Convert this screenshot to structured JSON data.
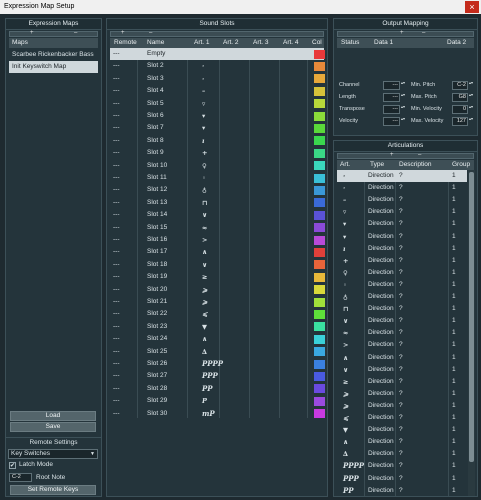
{
  "window": {
    "title": "Expression Map Setup",
    "close_glyph": "×"
  },
  "expression_maps": {
    "header": "Expression Maps",
    "add_glyph": "+",
    "remove_glyph": "–",
    "col_header": "Maps",
    "maps": [
      {
        "name": "Scarbee Rickenbacker Bass",
        "selected": false
      },
      {
        "name": "Init Keyswitch Map",
        "selected": true
      }
    ],
    "load_label": "Load",
    "save_label": "Save"
  },
  "remote_settings": {
    "header": "Remote Settings",
    "mode_value": "Key Switches",
    "latch_label": "Latch Mode",
    "latch_checked": true,
    "root_note_value": "C-2",
    "root_note_label": "Root Note",
    "set_keys_label": "Set Remote Keys"
  },
  "sound_slots": {
    "header": "Sound Slots",
    "add_glyph": "+",
    "remove_glyph": "–",
    "columns": [
      "Remote",
      "Name",
      "Art. 1",
      "Art. 2",
      "Art. 3",
      "Art. 4",
      "Col"
    ],
    "rows": [
      {
        "remote": "---",
        "name": "Empty",
        "art1": "",
        "color": "#e8383a"
      },
      {
        "remote": "---",
        "name": "Slot 2",
        "art1": "·",
        "color": "#e8893a"
      },
      {
        "remote": "---",
        "name": "Slot 3",
        "art1": "·",
        "color": "#e8a83a"
      },
      {
        "remote": "---",
        "name": "Slot 4",
        "art1": "–",
        "color": "#d6c23a"
      },
      {
        "remote": "---",
        "name": "Slot 5",
        "art1": "▿",
        "color": "#b8d83a"
      },
      {
        "remote": "---",
        "name": "Slot 6",
        "art1": "▾",
        "color": "#8bdc3a"
      },
      {
        "remote": "---",
        "name": "Slot 7",
        "art1": "▾",
        "color": "#5ad83a"
      },
      {
        "remote": "---",
        "name": "Slot 8",
        "art1": "ı",
        "color": "#3ad84e"
      },
      {
        "remote": "---",
        "name": "Slot 9",
        "art1": "+",
        "color": "#3ad886"
      },
      {
        "remote": "---",
        "name": "Slot 10",
        "art1": "♀",
        "color": "#3ad8bc"
      },
      {
        "remote": "---",
        "name": "Slot 11",
        "art1": "◦",
        "color": "#3ac0d8"
      },
      {
        "remote": "---",
        "name": "Slot 12",
        "art1": "♁",
        "color": "#3a98d8"
      },
      {
        "remote": "---",
        "name": "Slot 13",
        "art1": "⊓",
        "color": "#3a6ad8"
      },
      {
        "remote": "---",
        "name": "Slot 14",
        "art1": "∨",
        "color": "#5a52d8"
      },
      {
        "remote": "---",
        "name": "Slot 15",
        "art1": "≈",
        "color": "#8a4ad8"
      },
      {
        "remote": "---",
        "name": "Slot 16",
        "art1": ">",
        "color": "#b84ad8"
      },
      {
        "remote": "---",
        "name": "Slot 17",
        "art1": "∧",
        "color": "#e0403a"
      },
      {
        "remote": "---",
        "name": "Slot 18",
        "art1": "∨",
        "color": "#e8643a"
      },
      {
        "remote": "---",
        "name": "Slot 19",
        "art1": "≥",
        "color": "#e8b83a"
      },
      {
        "remote": "---",
        "name": "Slot 20",
        "art1": "⩾",
        "color": "#d8d83a"
      },
      {
        "remote": "---",
        "name": "Slot 21",
        "art1": "⩾",
        "color": "#a0e03a"
      },
      {
        "remote": "---",
        "name": "Slot 22",
        "art1": "⩽",
        "color": "#5ee03a"
      },
      {
        "remote": "---",
        "name": "Slot 23",
        "art1": "▼",
        "color": "#3ae0a0"
      },
      {
        "remote": "---",
        "name": "Slot 24",
        "art1": "∧",
        "color": "#3ad0d8"
      },
      {
        "remote": "---",
        "name": "Slot 25",
        "art1": "∆",
        "color": "#3aa8e0"
      },
      {
        "remote": "---",
        "name": "Slot 26",
        "art1": "PPPP",
        "color": "#3a80e0"
      },
      {
        "remote": "---",
        "name": "Slot 27",
        "art1": "PPP",
        "color": "#4a5ae0"
      },
      {
        "remote": "---",
        "name": "Slot 28",
        "art1": "PP",
        "color": "#6a4ae0"
      },
      {
        "remote": "---",
        "name": "Slot 29",
        "art1": "P",
        "color": "#9a4ae0"
      },
      {
        "remote": "---",
        "name": "Slot 30",
        "art1": "mP",
        "color": "#c83ae0"
      }
    ]
  },
  "output_mapping": {
    "header": "Output Mapping",
    "add_glyph": "+",
    "remove_glyph": "–",
    "columns": [
      "Status",
      "Data 1",
      "Data 2"
    ],
    "params_left": [
      {
        "label": "Channel",
        "value": "---"
      },
      {
        "label": "Length",
        "value": "---"
      },
      {
        "label": "Transpose",
        "value": "---"
      },
      {
        "label": "Velocity",
        "value": "---"
      }
    ],
    "params_right": [
      {
        "label": "Min. Pitch",
        "value": "C-2"
      },
      {
        "label": "Max. Pitch",
        "value": "G8"
      },
      {
        "label": "Min. Velocity",
        "value": "0"
      },
      {
        "label": "Max. Velocity",
        "value": "127"
      }
    ]
  },
  "articulations": {
    "header": "Articulations",
    "add_glyph": "+",
    "remove_glyph": "–",
    "columns": [
      "Art.",
      "Type",
      "Description",
      "Group"
    ],
    "rows": [
      {
        "art": "·",
        "type": "Direction",
        "desc": "?",
        "group": "1"
      },
      {
        "art": "·",
        "type": "Direction",
        "desc": "?",
        "group": "1"
      },
      {
        "art": "–",
        "type": "Direction",
        "desc": "?",
        "group": "1"
      },
      {
        "art": "▿",
        "type": "Direction",
        "desc": "?",
        "group": "1"
      },
      {
        "art": "▾",
        "type": "Direction",
        "desc": "?",
        "group": "1"
      },
      {
        "art": "▾",
        "type": "Direction",
        "desc": "?",
        "group": "1"
      },
      {
        "art": "ı",
        "type": "Direction",
        "desc": "?",
        "group": "1"
      },
      {
        "art": "+",
        "type": "Direction",
        "desc": "?",
        "group": "1"
      },
      {
        "art": "♀",
        "type": "Direction",
        "desc": "?",
        "group": "1"
      },
      {
        "art": "◦",
        "type": "Direction",
        "desc": "?",
        "group": "1"
      },
      {
        "art": "♁",
        "type": "Direction",
        "desc": "?",
        "group": "1"
      },
      {
        "art": "⊓",
        "type": "Direction",
        "desc": "?",
        "group": "1"
      },
      {
        "art": "∨",
        "type": "Direction",
        "desc": "?",
        "group": "1"
      },
      {
        "art": "≈",
        "type": "Direction",
        "desc": "?",
        "group": "1"
      },
      {
        "art": ">",
        "type": "Direction",
        "desc": "?",
        "group": "1"
      },
      {
        "art": "∧",
        "type": "Direction",
        "desc": "?",
        "group": "1"
      },
      {
        "art": "∨",
        "type": "Direction",
        "desc": "?",
        "group": "1"
      },
      {
        "art": "≥",
        "type": "Direction",
        "desc": "?",
        "group": "1"
      },
      {
        "art": "⩾",
        "type": "Direction",
        "desc": "?",
        "group": "1"
      },
      {
        "art": "⩾",
        "type": "Direction",
        "desc": "?",
        "group": "1"
      },
      {
        "art": "⩽",
        "type": "Direction",
        "desc": "?",
        "group": "1"
      },
      {
        "art": "▼",
        "type": "Direction",
        "desc": "?",
        "group": "1"
      },
      {
        "art": "∧",
        "type": "Direction",
        "desc": "?",
        "group": "1"
      },
      {
        "art": "∆",
        "type": "Direction",
        "desc": "?",
        "group": "1"
      },
      {
        "art": "PPPP",
        "type": "Direction",
        "desc": "?",
        "group": "1"
      },
      {
        "art": "PPP",
        "type": "Direction",
        "desc": "?",
        "group": "1"
      },
      {
        "art": "PP",
        "type": "Direction",
        "desc": "?",
        "group": "1"
      }
    ]
  }
}
